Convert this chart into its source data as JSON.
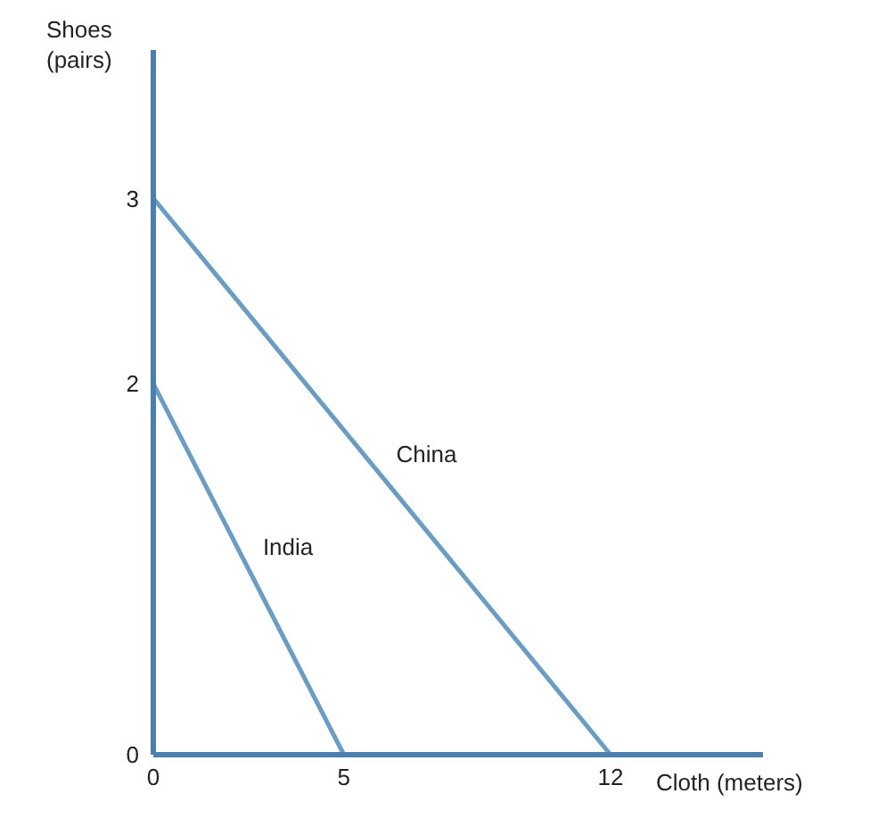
{
  "chart_data": {
    "type": "line",
    "xlabel": "Cloth (meters)",
    "ylabel": "Shoes (pairs)",
    "series": [
      {
        "name": "China",
        "color": "#6b9cc4",
        "x": [
          0,
          12
        ],
        "values": [
          3,
          0
        ]
      },
      {
        "name": "India",
        "color": "#6b9cc4",
        "x": [
          0,
          5
        ],
        "values": [
          2,
          0
        ]
      }
    ],
    "xlim": [
      0,
      16
    ],
    "xticks": [
      0,
      5,
      12
    ],
    "ylim": [
      0,
      3.8
    ],
    "yticks": [
      0,
      2,
      3
    ],
    "grid": false,
    "legend": false,
    "marker": "none",
    "line_style": "solid"
  }
}
